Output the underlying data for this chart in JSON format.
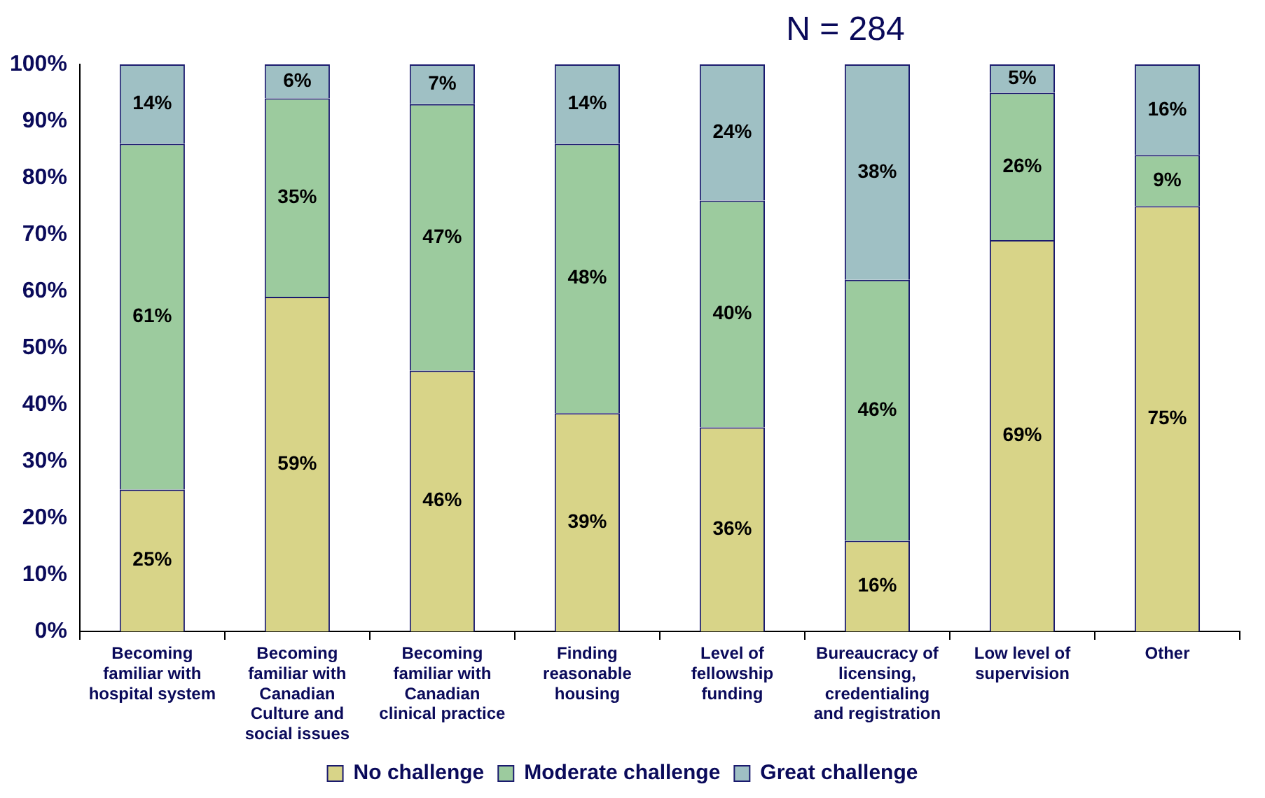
{
  "chart_data": {
    "type": "bar",
    "stacked": true,
    "title": "N = 284",
    "categories": [
      "Becoming familiar with hospital system",
      "Becoming familiar with Canadian Culture and social issues",
      "Becoming familiar with Canadian clinical practice",
      "Finding reasonable housing",
      "Level of fellowship funding",
      "Bureaucracy of licensing, credentialing and registration",
      "Low level of supervision",
      "Other"
    ],
    "series": [
      {
        "name": "No challenge",
        "color": "#d8d488",
        "values": [
          25,
          59,
          46,
          38.5,
          36,
          16,
          69,
          75
        ],
        "value_labels": [
          "25%",
          "59%",
          "46%",
          "39%",
          "36%",
          "16%",
          "69%",
          "75%"
        ]
      },
      {
        "name": "Moderate challenge",
        "color": "#9ccb9e",
        "values": [
          61,
          35,
          47,
          47.5,
          40,
          46,
          26,
          9
        ],
        "value_labels": [
          "61%",
          "35%",
          "47%",
          "48%",
          "40%",
          "46%",
          "26%",
          "9%"
        ]
      },
      {
        "name": "Great challenge",
        "color": "#9fc0c4",
        "values": [
          14,
          6,
          7,
          14,
          24,
          38,
          5,
          16
        ],
        "value_labels": [
          "14%",
          "6%",
          "7%",
          "14%",
          "24%",
          "38%",
          "5%",
          "16%"
        ]
      }
    ],
    "ylim": [
      0,
      100
    ],
    "yticks": [
      {
        "value": 0,
        "label": "0%"
      },
      {
        "value": 10,
        "label": "10%"
      },
      {
        "value": 20,
        "label": "20%"
      },
      {
        "value": 30,
        "label": "30%"
      },
      {
        "value": 40,
        "label": "40%"
      },
      {
        "value": 50,
        "label": "50%"
      },
      {
        "value": 60,
        "label": "60%"
      },
      {
        "value": 70,
        "label": "70%"
      },
      {
        "value": 80,
        "label": "80%"
      },
      {
        "value": 90,
        "label": "90%"
      },
      {
        "value": 100,
        "label": "100%"
      }
    ],
    "grid": false,
    "legend": "bottom"
  }
}
